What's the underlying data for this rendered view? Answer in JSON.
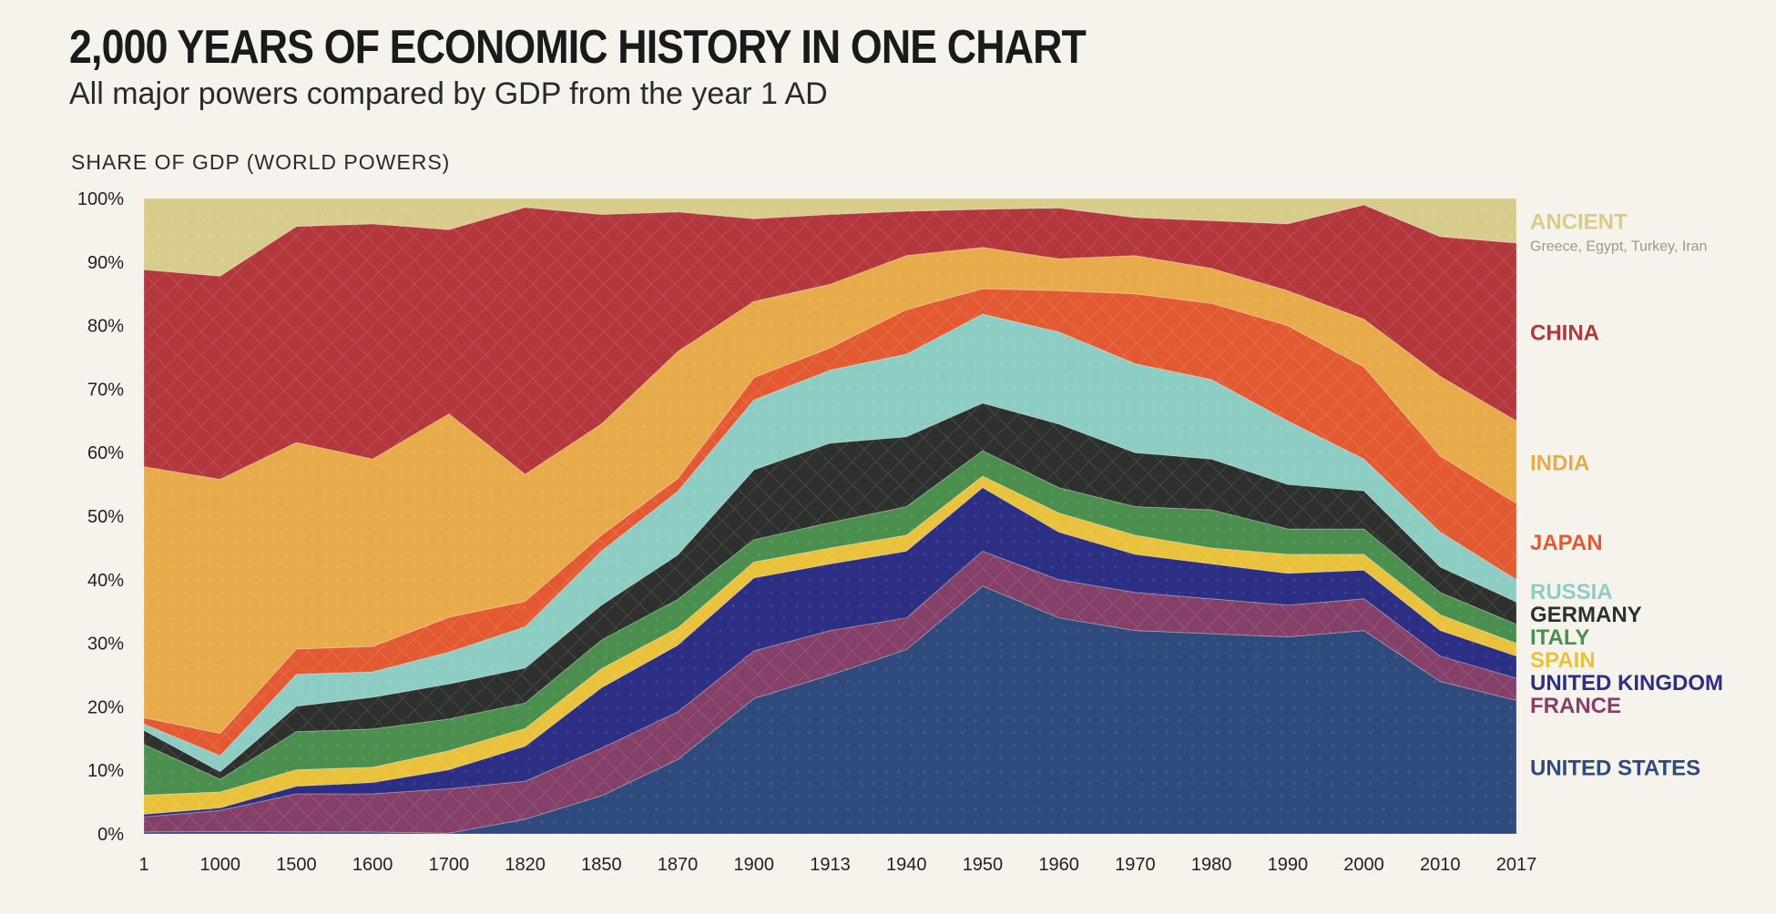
{
  "header": {
    "title": "2,000 YEARS OF ECONOMIC HISTORY IN ONE CHART",
    "subtitle": "All major powers compared by GDP from the year 1 AD"
  },
  "chart_data": {
    "type": "area",
    "stacked": true,
    "title": "2,000 YEARS OF ECONOMIC HISTORY IN ONE CHART",
    "ylabel": "SHARE OF GDP (WORLD POWERS)",
    "xlabel": "",
    "ylim": [
      0,
      100
    ],
    "y_ticks": [
      "0%",
      "10%",
      "20%",
      "30%",
      "40%",
      "50%",
      "60%",
      "70%",
      "80%",
      "90%",
      "100%"
    ],
    "categories": [
      "1",
      "1000",
      "1500",
      "1600",
      "1700",
      "1820",
      "1850",
      "1870",
      "1900",
      "1913",
      "1940",
      "1950",
      "1960",
      "1970",
      "1980",
      "1990",
      "2000",
      "2010",
      "2017"
    ],
    "series": [
      {
        "name": "UNITED STATES",
        "color": "#2f4a7c",
        "values": [
          0.3,
          0.4,
          0.3,
          0.3,
          0.1,
          2.3,
          6.0,
          11.7,
          21.3,
          25.0,
          29.0,
          39.0,
          34.0,
          32.0,
          31.5,
          31.0,
          32.0,
          24.0,
          21.0
        ]
      },
      {
        "name": "FRANCE",
        "color": "#844068",
        "values": [
          2.4,
          3.3,
          6.0,
          6.0,
          7.0,
          6.0,
          7.5,
          7.5,
          7.5,
          7.0,
          5.0,
          5.5,
          6.0,
          6.0,
          5.5,
          5.0,
          5.0,
          4.0,
          3.5
        ]
      },
      {
        "name": "UNITED KINGDOM",
        "color": "#2c2f84",
        "values": [
          0.4,
          0.4,
          1.2,
          1.8,
          3.0,
          5.5,
          9.5,
          10.5,
          11.5,
          10.5,
          10.5,
          10.0,
          7.5,
          6.0,
          5.5,
          5.0,
          4.5,
          4.0,
          3.5
        ]
      },
      {
        "name": "SPAIN",
        "color": "#e9c13a",
        "values": [
          3.0,
          2.5,
          2.6,
          2.4,
          3.0,
          2.8,
          3.0,
          2.7,
          2.5,
          2.5,
          2.5,
          1.8,
          3.0,
          3.0,
          2.5,
          3.0,
          2.5,
          2.5,
          2.0
        ]
      },
      {
        "name": "ITALY",
        "color": "#4b8f4e",
        "values": [
          8.0,
          2.0,
          6.0,
          6.0,
          5.0,
          4.0,
          4.5,
          4.5,
          3.5,
          4.0,
          4.5,
          4.0,
          4.0,
          4.5,
          6.0,
          4.0,
          4.0,
          3.5,
          3.0
        ]
      },
      {
        "name": "GERMANY",
        "color": "#2d302c",
        "values": [
          2.2,
          1.2,
          4.0,
          5.0,
          5.5,
          5.5,
          5.5,
          7.0,
          11.0,
          12.5,
          11.0,
          7.5,
          10.0,
          8.5,
          8.0,
          7.0,
          6.0,
          4.0,
          3.5
        ]
      },
      {
        "name": "RUSSIA",
        "color": "#8ecdc4",
        "values": [
          1.0,
          2.5,
          5.0,
          4.0,
          5.0,
          6.5,
          8.5,
          10.0,
          11.0,
          11.5,
          13.0,
          14.0,
          14.5,
          14.0,
          12.5,
          10.0,
          5.0,
          5.5,
          3.5
        ]
      },
      {
        "name": "JAPAN",
        "color": "#e35a32",
        "values": [
          1.0,
          3.5,
          4.0,
          4.0,
          5.5,
          4.0,
          2.5,
          2.0,
          3.5,
          3.5,
          7.0,
          4.0,
          6.5,
          11.0,
          12.0,
          15.0,
          14.5,
          12.0,
          12.0
        ]
      },
      {
        "name": "INDIA",
        "color": "#e8ab4c",
        "values": [
          39.5,
          40.0,
          32.5,
          29.5,
          32.0,
          20.0,
          17.5,
          20.0,
          12.0,
          10.0,
          8.5,
          6.5,
          5.0,
          6.0,
          5.5,
          5.5,
          7.5,
          12.5,
          13.0
        ]
      },
      {
        "name": "CHINA",
        "color": "#b3373d",
        "values": [
          31.0,
          32.0,
          34.0,
          37.0,
          29.0,
          42.0,
          33.0,
          22.0,
          13.0,
          11.0,
          7.0,
          6.0,
          8.0,
          6.0,
          7.5,
          10.5,
          18.0,
          22.0,
          28.0
        ]
      },
      {
        "name": "ANCIENT",
        "sub": "Greece, Egypt, Turkey, Iran",
        "color": "#d8cc8c",
        "values": [
          11.2,
          11.2,
          4.4,
          4.0,
          4.0,
          1.9,
          2.0,
          2.1,
          2.7,
          2.5,
          2.0,
          1.7,
          1.5,
          2.5,
          3.0,
          3.5,
          3.5,
          6.0,
          6.5
        ]
      }
    ]
  }
}
